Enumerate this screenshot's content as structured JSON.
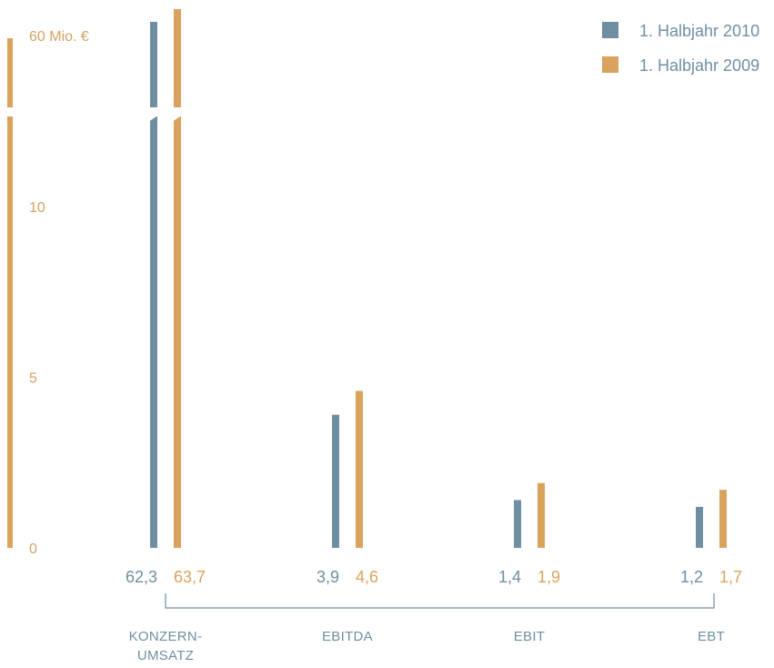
{
  "chart_data": {
    "type": "bar",
    "unit_label": "60 Mio. €",
    "y_ticks": [
      {
        "value": 0,
        "label": "0"
      },
      {
        "value": 5,
        "label": "5"
      },
      {
        "value": 10,
        "label": "10"
      }
    ],
    "ylim": [
      0,
      15
    ],
    "axis_break": true,
    "categories": [
      {
        "lines": [
          "KONZERN-",
          "UMSATZ"
        ]
      },
      {
        "lines": [
          "EBITDA"
        ]
      },
      {
        "lines": [
          "EBIT"
        ]
      },
      {
        "lines": [
          "EBT"
        ]
      }
    ],
    "series": [
      {
        "name": "1. Halbjahr 2010",
        "color": "#6e8fa2",
        "values": [
          62.3,
          3.9,
          1.4,
          1.2
        ],
        "labels": [
          "62,3",
          "3,9",
          "1,4",
          "1,2"
        ]
      },
      {
        "name": "1. Halbjahr 2009",
        "color": "#d9a35e",
        "values": [
          63.7,
          4.6,
          1.9,
          1.7
        ],
        "labels": [
          "63,7",
          "4,6",
          "1,9",
          "1,7"
        ]
      }
    ],
    "grid": false,
    "legend_position": "top-right"
  }
}
